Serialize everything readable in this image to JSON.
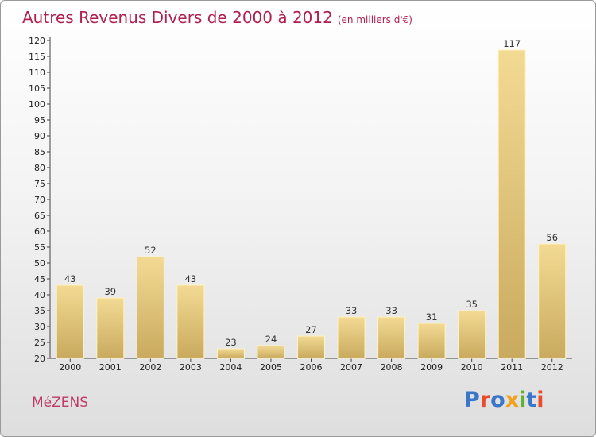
{
  "title": "Autres Revenus Divers de 2000 à 2012",
  "subtitle": "(en milliers d'€)",
  "commune": "MéZENS",
  "logo": {
    "text": "Proxiti",
    "colors": [
      "#3a77c8",
      "#e84c2a",
      "#3a77c8",
      "#f2a11e",
      "#62b137",
      "#3a77c8",
      "#e84c2a"
    ]
  },
  "chart_data": {
    "type": "bar",
    "categories": [
      "2000",
      "2001",
      "2002",
      "2003",
      "2004",
      "2005",
      "2006",
      "2007",
      "2008",
      "2009",
      "2010",
      "2011",
      "2012"
    ],
    "values": [
      43,
      39,
      52,
      43,
      23,
      24,
      27,
      33,
      33,
      31,
      35,
      117,
      56
    ],
    "ylim": [
      20,
      120
    ],
    "yticks": [
      20,
      25,
      30,
      35,
      40,
      45,
      50,
      55,
      60,
      65,
      70,
      75,
      80,
      85,
      90,
      95,
      100,
      105,
      110,
      115,
      120
    ],
    "grid": false,
    "bar_color": "#e3c77a"
  }
}
